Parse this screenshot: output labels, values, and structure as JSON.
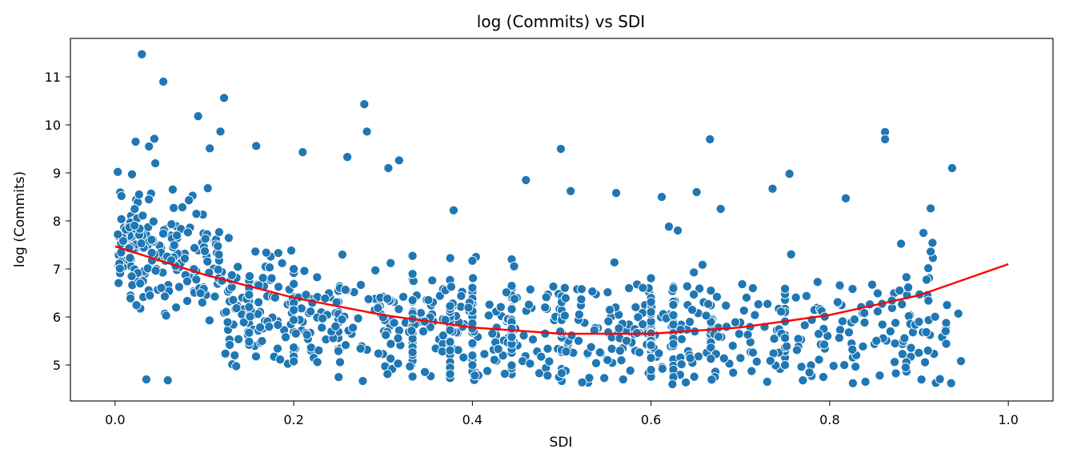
{
  "chart_data": {
    "type": "scatter",
    "title": "log (Commits) vs SDI",
    "xlabel": "SDI",
    "ylabel": "log (Commits)",
    "xlim": [
      -0.05,
      1.05
    ],
    "ylim": [
      4.25,
      11.8
    ],
    "xticks": [
      "0.0",
      "0.2",
      "0.4",
      "0.6",
      "0.8",
      "1.0"
    ],
    "xtick_values": [
      0.0,
      0.2,
      0.4,
      0.6,
      0.8,
      1.0
    ],
    "yticks": [
      "5",
      "6",
      "7",
      "8",
      "9",
      "10",
      "11"
    ],
    "ytick_values": [
      5,
      6,
      7,
      8,
      9,
      10,
      11
    ],
    "grid": false,
    "point_color": "#1f77b4",
    "fit_color": "#ff0000",
    "fit": {
      "name": "quadratic fit",
      "x": [
        0.0,
        0.1,
        0.2,
        0.3,
        0.4,
        0.5,
        0.6,
        0.7,
        0.8,
        0.9,
        1.0
      ],
      "y": [
        7.47,
        6.88,
        6.4,
        6.04,
        5.78,
        5.65,
        5.65,
        5.78,
        6.04,
        6.45,
        7.1
      ]
    },
    "outliers": [
      [
        0.03,
        11.47
      ],
      [
        0.054,
        10.9
      ],
      [
        0.122,
        10.56
      ],
      [
        0.279,
        10.43
      ],
      [
        0.282,
        9.86
      ],
      [
        0.118,
        9.86
      ],
      [
        0.093,
        10.18
      ],
      [
        0.862,
        9.85
      ],
      [
        0.862,
        9.7
      ],
      [
        0.666,
        9.7
      ],
      [
        0.499,
        9.5
      ],
      [
        0.937,
        9.1
      ],
      [
        0.755,
        8.98
      ],
      [
        0.46,
        8.85
      ],
      [
        0.51,
        8.62
      ],
      [
        0.561,
        8.58
      ],
      [
        0.612,
        8.5
      ],
      [
        0.736,
        8.67
      ],
      [
        0.818,
        8.47
      ],
      [
        0.913,
        8.26
      ],
      [
        0.678,
        8.25
      ],
      [
        0.379,
        8.22
      ],
      [
        0.003,
        9.02
      ],
      [
        0.019,
        8.97
      ],
      [
        0.045,
        9.2
      ],
      [
        0.035,
        4.7
      ],
      [
        0.059,
        4.68
      ],
      [
        0.947,
        5.08
      ],
      [
        0.936,
        4.62
      ],
      [
        0.624,
        4.6
      ],
      [
        0.826,
        4.62
      ],
      [
        0.84,
        4.65
      ],
      [
        0.856,
        4.78
      ],
      [
        0.73,
        4.65
      ],
      [
        0.77,
        4.68
      ],
      [
        0.21,
        9.43
      ],
      [
        0.26,
        9.33
      ],
      [
        0.306,
        9.1
      ],
      [
        0.318,
        9.26
      ],
      [
        0.158,
        9.56
      ],
      [
        0.106,
        9.51
      ],
      [
        0.023,
        9.65
      ],
      [
        0.038,
        9.55
      ],
      [
        0.044,
        9.71
      ],
      [
        0.651,
        8.6
      ],
      [
        0.62,
        7.88
      ],
      [
        0.63,
        7.8
      ],
      [
        0.905,
        7.75
      ],
      [
        0.913,
        7.36
      ],
      [
        0.944,
        6.07
      ],
      [
        0.9,
        5.9
      ],
      [
        0.91,
        5.3
      ]
    ],
    "cloud_seed": 20240607,
    "cloud_count": 1050
  }
}
